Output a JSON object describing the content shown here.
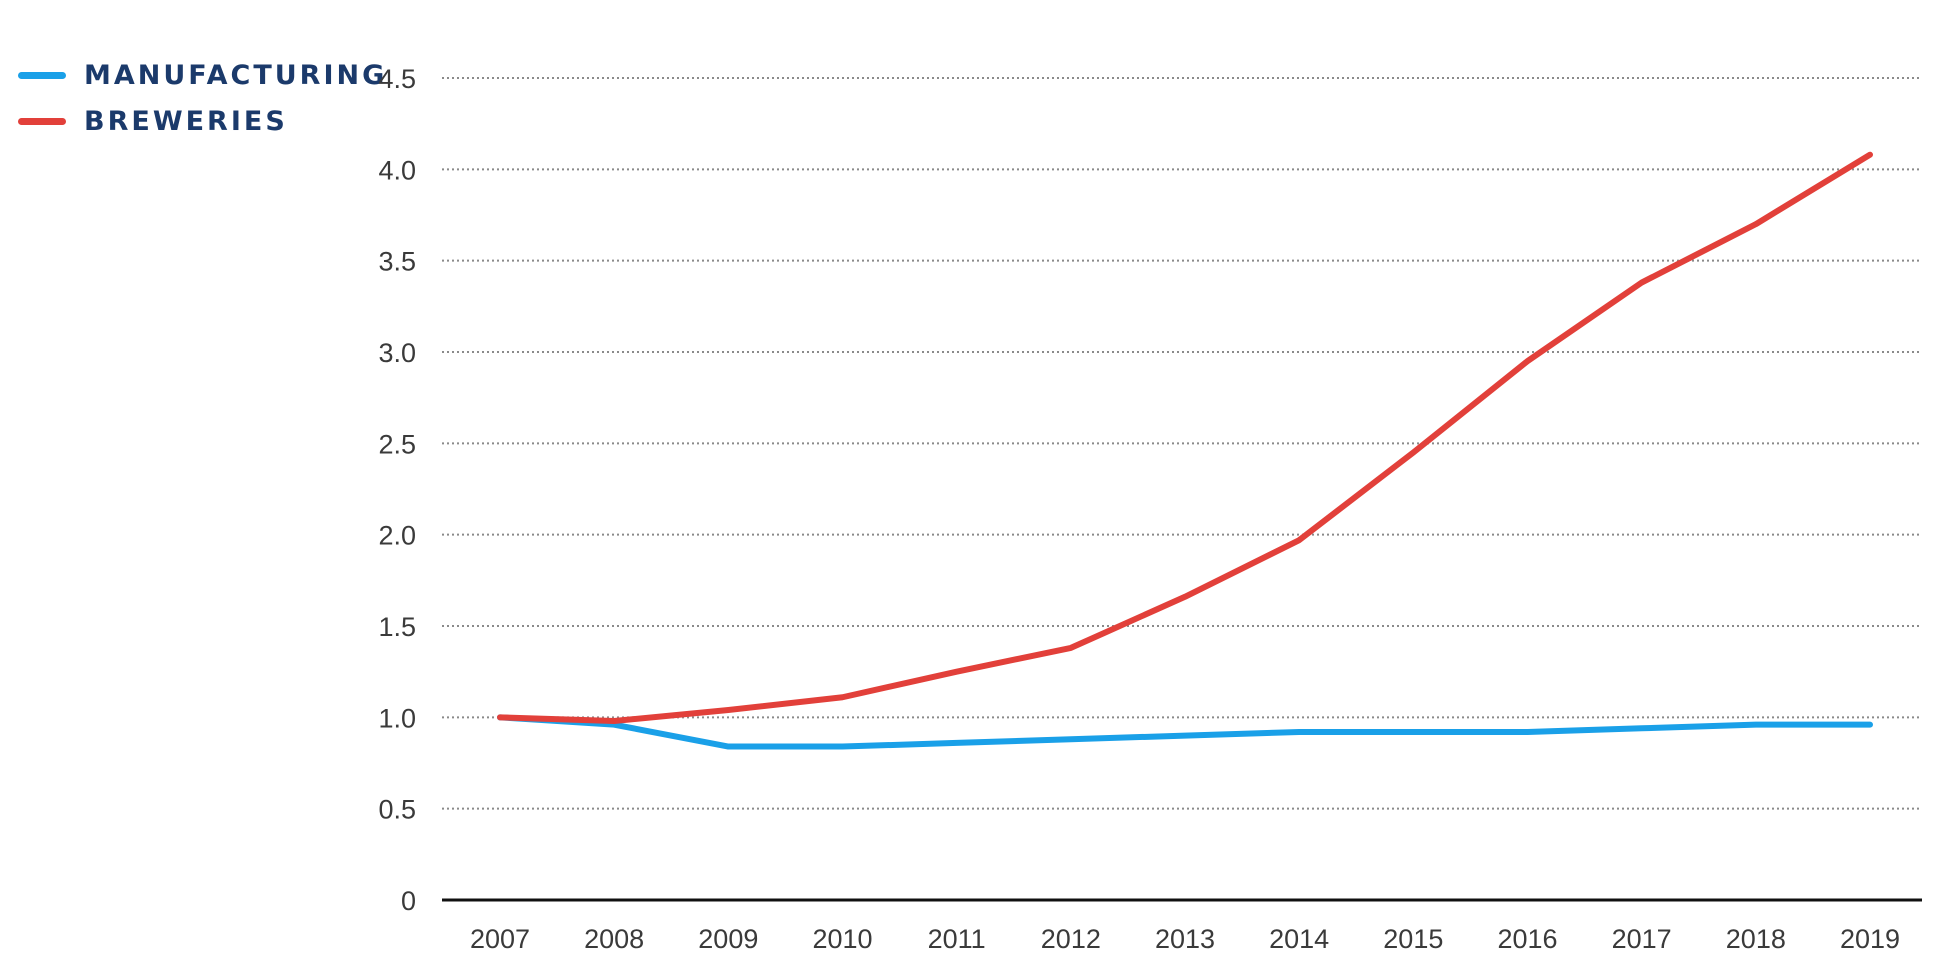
{
  "chart_data": {
    "type": "line",
    "title": "",
    "xlabel": "",
    "ylabel": "",
    "x": [
      "2007",
      "2008",
      "2009",
      "2010",
      "2011",
      "2012",
      "2013",
      "2014",
      "2015",
      "2016",
      "2017",
      "2018",
      "2019"
    ],
    "ylim": [
      0,
      4.5
    ],
    "yticks": [
      "0",
      "0.5",
      "1.0",
      "1.5",
      "2.0",
      "2.5",
      "3.0",
      "3.5",
      "4.0",
      "4.5"
    ],
    "grid": "horizontal dotted",
    "legend_position": "top-left",
    "series": [
      {
        "name": "MANUFACTURING",
        "color": "#1aa0e8",
        "values": [
          1.0,
          0.96,
          0.84,
          0.84,
          0.86,
          0.88,
          0.9,
          0.92,
          0.92,
          0.92,
          0.94,
          0.96,
          0.96
        ]
      },
      {
        "name": "BREWERIES",
        "color": "#e2403a",
        "values": [
          1.0,
          0.98,
          1.04,
          1.11,
          1.25,
          1.38,
          1.66,
          1.97,
          2.45,
          2.95,
          3.38,
          3.7,
          4.08
        ]
      }
    ]
  }
}
